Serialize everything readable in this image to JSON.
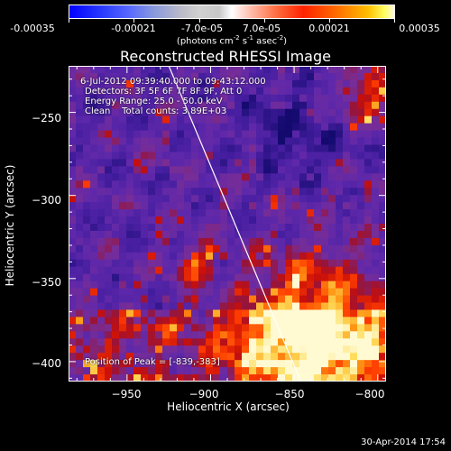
{
  "colorbar": {
    "tick_labels": [
      "-0.00035",
      "-0.00021",
      "-7.0e-05",
      "7.0e-05",
      "0.00021",
      "0.00035"
    ],
    "units_main": "(photons cm",
    "units_exp1": "-2",
    "units_mid": " s",
    "units_exp2": "-1",
    "units_tail": " asec",
    "units_exp3": "-2",
    "units_close": ")"
  },
  "chart_data": {
    "type": "heatmap",
    "title": "Reconstructed RHESSI Image",
    "xlabel": "Heliocentric X (arcsec)",
    "ylabel": "Heliocentric Y (arcsec)",
    "xlim": [
      -985,
      -795
    ],
    "ylim": [
      -412,
      -222
    ],
    "x_ticks": [
      -950,
      -900,
      -850,
      -800
    ],
    "y_ticks": [
      -250,
      -300,
      -350,
      -400
    ],
    "x_tick_labels": [
      "−950",
      "−900",
      "−850",
      "−800"
    ],
    "y_tick_labels": [
      "−250",
      "−300",
      "−350",
      "−400"
    ],
    "colorbar_range": [
      -0.00035,
      0.00035
    ],
    "peak_position": [
      -839,
      -383
    ],
    "limb_line": [
      [
        -925,
        -222
      ],
      [
        -846,
        -412
      ]
    ]
  },
  "info": {
    "line1": "6-Jul-2012 09:39:40.000 to 09:43:12.000",
    "line2": "Detectors: 3F 5F 6F 7F 8F 9F, Att 0",
    "line3": "Energy Range: 25.0 - 50.0 keV",
    "line4": "Clean    Total counts: 3.89E+03",
    "peak": "Position of Peak = [-839,-383]"
  },
  "timestamp": "30-Apr-2014 17:54"
}
